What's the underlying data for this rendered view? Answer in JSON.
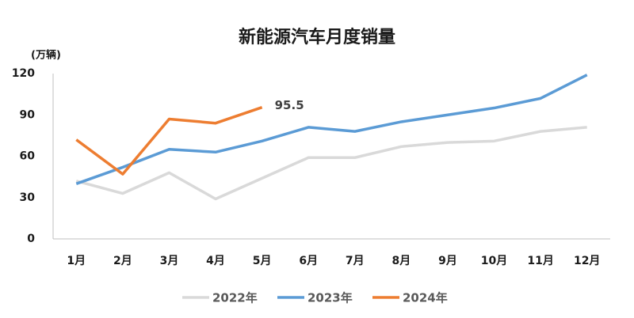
{
  "chart_data": {
    "type": "line",
    "title": "新能源汽车月度销量",
    "y_label": "(万辆)",
    "categories": [
      "1月",
      "2月",
      "3月",
      "4月",
      "5月",
      "6月",
      "7月",
      "8月",
      "9月",
      "10月",
      "11月",
      "12月"
    ],
    "series": [
      {
        "name": "2022年",
        "color": "#d9d9d9",
        "values": [
          42,
          33,
          48,
          29,
          44,
          59,
          59,
          67,
          70,
          71,
          78,
          81
        ]
      },
      {
        "name": "2023年",
        "color": "#5b9bd5",
        "values": [
          40,
          52,
          65,
          63,
          71,
          81,
          78,
          85,
          90,
          95,
          102,
          119
        ]
      },
      {
        "name": "2024年",
        "color": "#ed7d31",
        "values": [
          72,
          47,
          87,
          84,
          95.5,
          null,
          null,
          null,
          null,
          null,
          null,
          null
        ]
      }
    ],
    "ylim": [
      0,
      120
    ],
    "yticks": [
      0,
      30,
      60,
      90,
      120
    ],
    "grid": false,
    "legend": "bottom"
  }
}
